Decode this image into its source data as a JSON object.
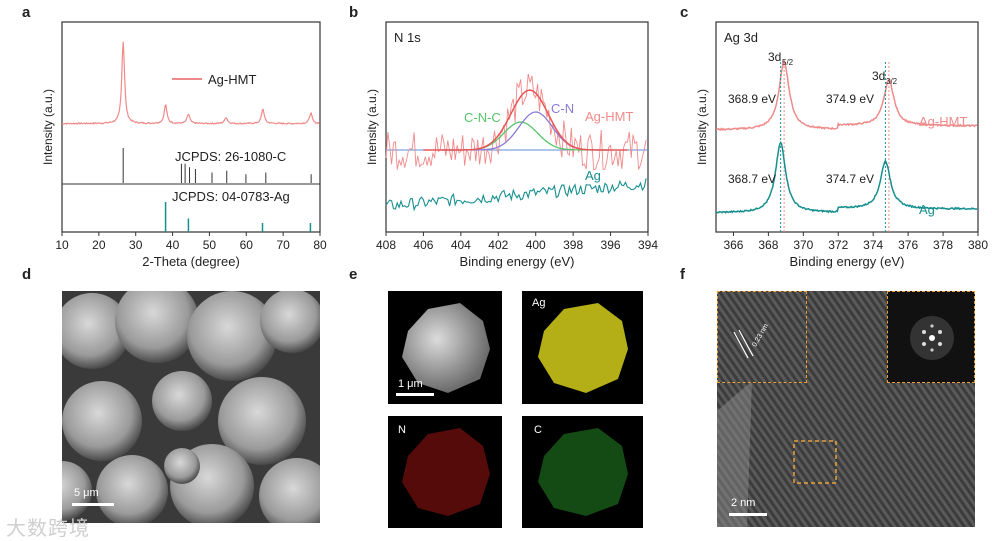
{
  "panels": {
    "a": {
      "label": "a"
    },
    "b": {
      "label": "b"
    },
    "c": {
      "label": "c"
    },
    "d": {
      "label": "d",
      "scale_bar": "5 μm"
    },
    "e": {
      "label": "e",
      "scale_bar": "1 μm",
      "map_labels": [
        "Ag",
        "N",
        "C"
      ]
    },
    "f": {
      "label": "f",
      "scale_bar": "2 nm",
      "inset_text": "0.23 nm"
    }
  },
  "watermark": "大数跨境",
  "colors": {
    "pink": "#f08a8a",
    "teal": "#178f8f",
    "green": "#56c56a",
    "purple": "#8a7bd6",
    "blue": "#5b8fd9",
    "frame": "#333333"
  },
  "chart_data": [
    {
      "id": "a",
      "type": "line",
      "title": "",
      "xlabel": "2-Theta (degree)",
      "ylabel": "Intensity (a.u.)",
      "xlim": [
        10,
        80
      ],
      "xticks": [
        10,
        20,
        30,
        40,
        50,
        60,
        70,
        80
      ],
      "legend": "Ag-HMT",
      "series": [
        {
          "name": "Ag-HMT",
          "peaks": [
            [
              26.6,
              78
            ],
            [
              38.1,
              18
            ],
            [
              44.3,
              9
            ],
            [
              54.5,
              6
            ],
            [
              64.5,
              14
            ],
            [
              77.5,
              10
            ]
          ],
          "baseline": 8
        }
      ],
      "reference_1": {
        "label": "JCPDS: 26-1080-C",
        "lines": [
          26.6,
          42.4,
          43.4,
          44.6,
          46.2,
          50.7,
          54.7,
          59.9,
          65.3,
          77.6
        ],
        "heights": [
          100,
          55,
          55,
          45,
          40,
          30,
          35,
          25,
          30,
          25
        ]
      },
      "reference_2": {
        "label": "JCPDS: 04-0783-Ag",
        "lines": [
          38.1,
          44.3,
          64.4,
          77.4
        ],
        "heights": [
          100,
          45,
          30,
          30
        ]
      }
    },
    {
      "id": "b",
      "type": "line",
      "title": "N 1s",
      "xlabel": "Binding energy (eV)",
      "ylabel": "Intensity (a.u.)",
      "xlim": [
        408,
        394
      ],
      "xticks": [
        408,
        406,
        404,
        402,
        400,
        398,
        396,
        394
      ],
      "annotations": [
        "C-N-C",
        "C-N",
        "Ag-HMT",
        "Ag"
      ],
      "components": [
        {
          "name": "C-N-C",
          "center": 400.8,
          "height": 28
        },
        {
          "name": "C-N",
          "center": 400.0,
          "height": 38
        }
      ]
    },
    {
      "id": "c",
      "type": "line",
      "title": "Ag 3d",
      "xlabel": "Binding energy (eV)",
      "ylabel": "Intensity (a.u.)",
      "xlim": [
        365,
        380
      ],
      "xticks": [
        366,
        368,
        370,
        372,
        374,
        376,
        378,
        380
      ],
      "peak_labels": {
        "p52_main": "3d",
        "p52_sub": "5/2",
        "p32_main": "3d",
        "p32_sub": "3/2"
      },
      "series": [
        {
          "name": "Ag-HMT",
          "peaks": [
            368.9,
            374.9
          ],
          "values_text": [
            "368.9 eV",
            "374.9 eV"
          ]
        },
        {
          "name": "Ag",
          "peaks": [
            368.7,
            374.7
          ],
          "values_text": [
            "368.7 eV",
            "374.7 eV"
          ]
        }
      ]
    }
  ]
}
